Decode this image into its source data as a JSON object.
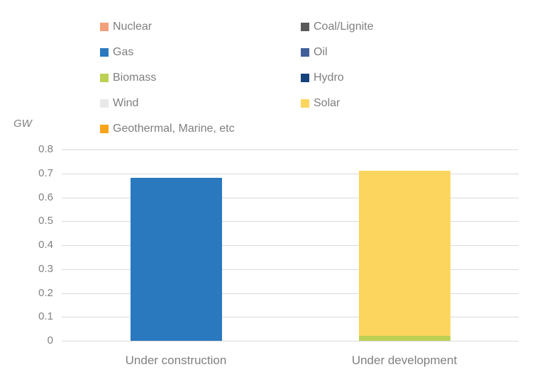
{
  "chart_data": {
    "type": "bar",
    "stacked": true,
    "categories": [
      "Under construction",
      "Under development"
    ],
    "series": [
      {
        "name": "Nuclear",
        "color": "#F2A07A",
        "values": [
          0,
          0
        ]
      },
      {
        "name": "Coal/Lignite",
        "color": "#595959",
        "values": [
          0,
          0
        ]
      },
      {
        "name": "Gas",
        "color": "#2A79BE",
        "values": [
          0.68,
          0
        ]
      },
      {
        "name": "Oil",
        "color": "#415F99",
        "values": [
          0,
          0
        ]
      },
      {
        "name": "Biomass",
        "color": "#BCD053",
        "values": [
          0,
          0.02
        ]
      },
      {
        "name": "Hydro",
        "color": "#16437C",
        "values": [
          0,
          0
        ]
      },
      {
        "name": "Wind",
        "color": "#E9E9E9",
        "values": [
          0,
          0
        ]
      },
      {
        "name": "Solar",
        "color": "#FCD55F",
        "values": [
          0,
          0.69
        ]
      },
      {
        "name": "Geothermal, Marine, etc",
        "color": "#F8A319",
        "values": [
          0,
          0
        ]
      }
    ],
    "title": "",
    "xlabel": "",
    "ylabel": "GW",
    "ylim": [
      0,
      0.8
    ],
    "ytick_step": 0.1,
    "ytick_labels": [
      "0",
      "0.1",
      "0.2",
      "0.3",
      "0.4",
      "0.5",
      "0.6",
      "0.7",
      "0.8"
    ],
    "grid": true,
    "legend_position": "top"
  },
  "colors": {
    "background": "#FFFFFF",
    "gridline": "#D9D9D9",
    "axis_text": "#808080",
    "legend_text": "#7F7F7F"
  },
  "bar_totals": {
    "under_construction": 0.68,
    "under_development": 0.71
  }
}
